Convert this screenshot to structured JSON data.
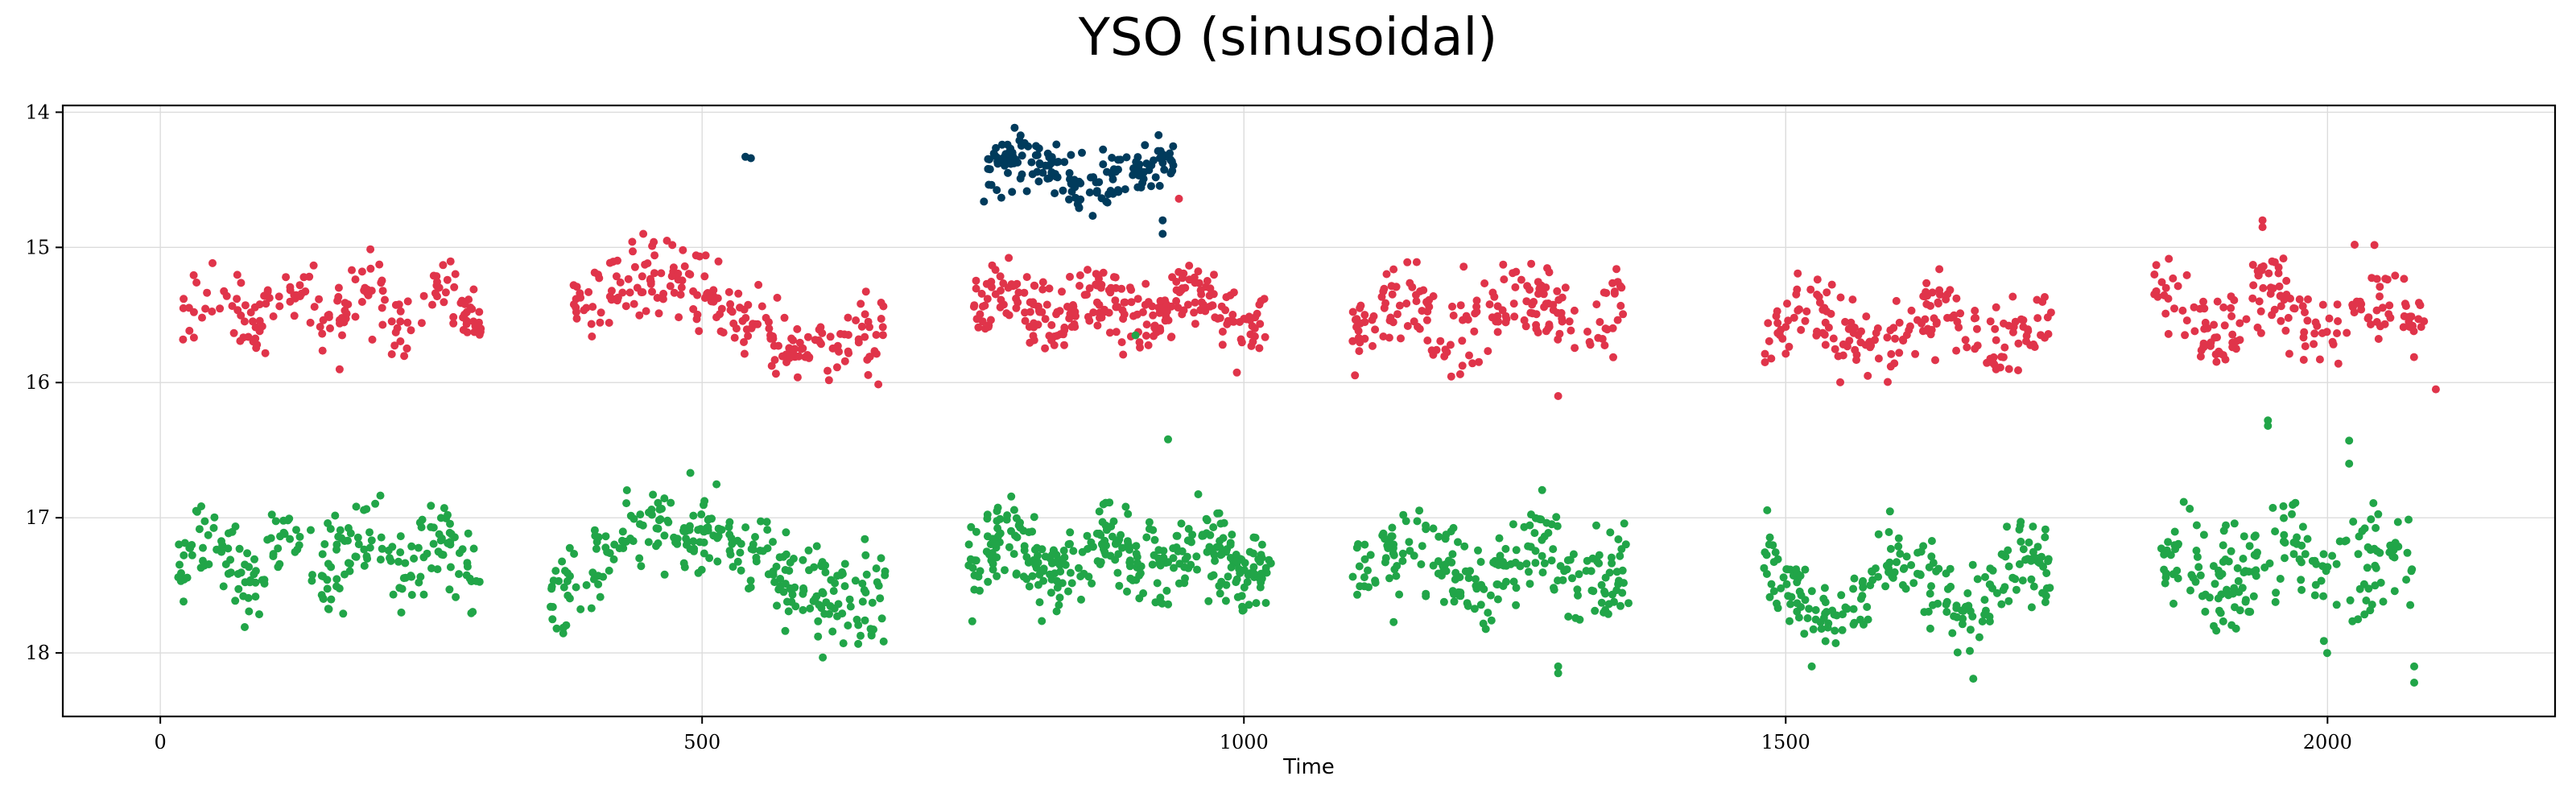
{
  "chart_data": {
    "type": "scatter",
    "title": "YSO (sinusoidal)",
    "xlabel": "Time",
    "ylabel": "",
    "xlim": [
      -90,
      2210
    ],
    "ylim": [
      18.47,
      13.95
    ],
    "y_inverted": true,
    "grid": true,
    "x_ticks": [
      "0",
      "500",
      "1000",
      "1500",
      "2000"
    ],
    "y_ticks": [
      "14",
      "15",
      "16",
      "17",
      "18"
    ],
    "series": [
      {
        "color": "#003b5c",
        "seasons": [
          {
            "x_range": [
              760,
              935
            ],
            "base": 14.45,
            "amp": 0.12,
            "period": 140,
            "phase": 0.4,
            "noise": 0.1,
            "n": 160
          }
        ],
        "extra_points": [
          [
            540,
            14.33
          ],
          [
            545,
            14.34
          ],
          [
            925,
            14.8
          ],
          [
            925,
            14.9
          ]
        ]
      },
      {
        "color": "#e0344a",
        "seasons": [
          {
            "x_range": [
              20,
              300
            ],
            "base": 15.45,
            "amp": 0.15,
            "period": 70,
            "phase": 0.2,
            "noise": 0.14,
            "n": 170
          },
          {
            "x_range": [
              380,
              670
            ],
            "base": 15.5,
            "amp": 0.25,
            "period": 300,
            "phase": 1.4,
            "noise": 0.14,
            "n": 210
          },
          {
            "x_range": [
              750,
              1020
            ],
            "base": 15.45,
            "amp": 0.1,
            "period": 90,
            "phase": 0.8,
            "noise": 0.13,
            "n": 260
          },
          {
            "x_range": [
              1100,
              1350
            ],
            "base": 15.5,
            "amp": 0.12,
            "period": 110,
            "phase": 2.1,
            "noise": 0.15,
            "n": 180
          },
          {
            "x_range": [
              1480,
              1745
            ],
            "base": 15.6,
            "amp": 0.15,
            "period": 120,
            "phase": 0.5,
            "noise": 0.14,
            "n": 180
          },
          {
            "x_range": [
              1840,
              2090
            ],
            "base": 15.5,
            "amp": 0.15,
            "period": 100,
            "phase": 1.7,
            "noise": 0.15,
            "n": 170
          }
        ],
        "extra_points": [
          [
            2100,
            16.05
          ],
          [
            1940,
            14.8
          ],
          [
            1940,
            14.85
          ],
          [
            2025,
            14.98
          ],
          [
            1290,
            16.1
          ],
          [
            940,
            14.64
          ]
        ]
      },
      {
        "color": "#21a548",
        "seasons": [
          {
            "x_range": [
              15,
              295
            ],
            "base": 17.3,
            "amp": 0.15,
            "period": 70,
            "phase": 0.7,
            "noise": 0.17,
            "n": 210
          },
          {
            "x_range": [
              360,
              670
            ],
            "base": 17.35,
            "amp": 0.3,
            "period": 320,
            "phase": 1.6,
            "noise": 0.16,
            "n": 260
          },
          {
            "x_range": [
              745,
              1025
            ],
            "base": 17.3,
            "amp": 0.12,
            "period": 90,
            "phase": 0.3,
            "noise": 0.15,
            "n": 320
          },
          {
            "x_range": [
              1100,
              1355
            ],
            "base": 17.35,
            "amp": 0.15,
            "period": 110,
            "phase": 1.2,
            "noise": 0.18,
            "n": 210
          },
          {
            "x_range": [
              1480,
              1745
            ],
            "base": 17.55,
            "amp": 0.2,
            "period": 120,
            "phase": 2.5,
            "noise": 0.17,
            "n": 220
          },
          {
            "x_range": [
              1845,
              2080
            ],
            "base": 17.4,
            "amp": 0.15,
            "period": 100,
            "phase": 0.9,
            "noise": 0.2,
            "n": 180
          }
        ],
        "extra_points": [
          [
            930,
            16.42
          ],
          [
            1945,
            16.28
          ],
          [
            1945,
            16.32
          ],
          [
            2020,
            16.43
          ],
          [
            2020,
            16.6
          ],
          [
            2080,
            18.1
          ],
          [
            2080,
            18.22
          ],
          [
            900,
            15.65
          ],
          [
            1290,
            18.15
          ],
          [
            1290,
            18.1
          ]
        ]
      }
    ]
  }
}
